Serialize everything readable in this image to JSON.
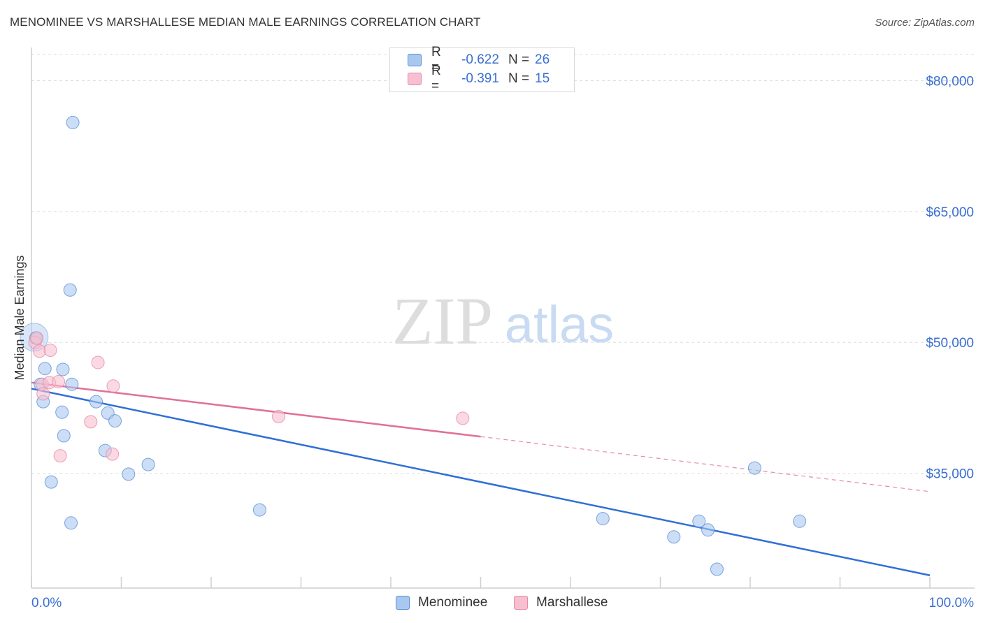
{
  "title": "MENOMINEE VS MARSHALLESE MEDIAN MALE EARNINGS CORRELATION CHART",
  "source": "Source: ZipAtlas.com",
  "watermark": {
    "zip": "ZIP",
    "atlas": "atlas"
  },
  "legend": {
    "rows": [
      {
        "r_label": "R =",
        "r_value": "-0.622",
        "n_label": "N =",
        "n_value": "26",
        "color": "#a8c8f0",
        "border": "#5b8fd6"
      },
      {
        "r_label": "R =",
        "r_value": "-0.391",
        "n_label": "N =",
        "n_value": "15",
        "color": "#f7bfd0",
        "border": "#e68aa7"
      }
    ]
  },
  "bottom_legend": [
    {
      "label": "Menominee",
      "color": "#a8c8f0",
      "border": "#5b8fd6"
    },
    {
      "label": "Marshallese",
      "color": "#f7bfd0",
      "border": "#e68aa7"
    }
  ],
  "chart_data": {
    "type": "scatter",
    "title": "MENOMINEE VS MARSHALLESE MEDIAN MALE EARNINGS CORRELATION CHART",
    "xlabel": "",
    "ylabel": "Median Male Earnings",
    "x_tick_labels": [
      "0.0%",
      "100.0%"
    ],
    "xlim": [
      0,
      100
    ],
    "ylim": [
      22000,
      83000
    ],
    "y_ticks": [
      35000,
      50000,
      65000,
      80000
    ],
    "y_tick_labels": [
      "$35,000",
      "$50,000",
      "$65,000",
      "$80,000"
    ],
    "grid": true,
    "legend_position": "top-center",
    "series": [
      {
        "name": "Menominee",
        "color": "#5b8fd6",
        "fill": "#a8c8f0",
        "points": [
          [
            0.5,
            50500
          ],
          [
            1.3,
            43200
          ],
          [
            1.0,
            45200
          ],
          [
            1.5,
            47000
          ],
          [
            2.2,
            34000
          ],
          [
            3.4,
            42000
          ],
          [
            3.5,
            46900
          ],
          [
            3.6,
            39300
          ],
          [
            4.3,
            56000
          ],
          [
            4.4,
            29300
          ],
          [
            4.6,
            75200
          ],
          [
            7.2,
            43200
          ],
          [
            8.2,
            37600
          ],
          [
            8.5,
            41900
          ],
          [
            9.3,
            41000
          ],
          [
            10.8,
            34900
          ],
          [
            13.0,
            36000
          ],
          [
            25.4,
            30800
          ],
          [
            63.6,
            29800
          ],
          [
            71.5,
            27700
          ],
          [
            74.3,
            29500
          ],
          [
            75.3,
            28500
          ],
          [
            76.3,
            24000
          ],
          [
            80.5,
            35600
          ],
          [
            85.5,
            29500
          ],
          [
            4.5,
            45200
          ]
        ],
        "trend": {
          "x": [
            0,
            100
          ],
          "y": [
            44700,
            23300
          ],
          "style": "solid"
        }
      },
      {
        "name": "Marshallese",
        "color": "#e68aa7",
        "fill": "#f7bfd0",
        "points": [
          [
            0.4,
            50000
          ],
          [
            0.6,
            50500
          ],
          [
            0.9,
            49000
          ],
          [
            1.2,
            45200
          ],
          [
            1.3,
            44100
          ],
          [
            2.0,
            45400
          ],
          [
            2.1,
            49100
          ],
          [
            3.0,
            45500
          ],
          [
            3.2,
            37000
          ],
          [
            6.6,
            40900
          ],
          [
            7.4,
            47700
          ],
          [
            9.0,
            37200
          ],
          [
            9.1,
            45000
          ],
          [
            27.5,
            41500
          ],
          [
            48.0,
            41300
          ]
        ],
        "trend": {
          "x": [
            0,
            50
          ],
          "y": [
            45400,
            39200
          ],
          "style": "solid",
          "extended_to": [
            100,
            32900
          ]
        }
      }
    ]
  }
}
